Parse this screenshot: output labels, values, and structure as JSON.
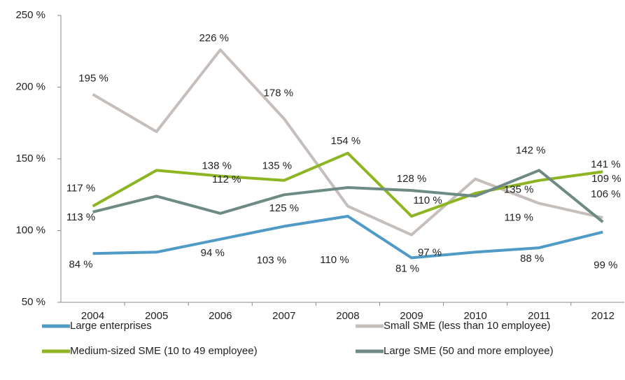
{
  "chart_data": {
    "type": "line",
    "categories": [
      "2004",
      "2005",
      "2006",
      "2007",
      "2008",
      "2009",
      "2010",
      "2011",
      "2012"
    ],
    "ylim": [
      50,
      250
    ],
    "yticks": [
      {
        "value": 50,
        "label": "50 %"
      },
      {
        "value": 100,
        "label": "100 %"
      },
      {
        "value": 150,
        "label": "150 %"
      },
      {
        "value": 200,
        "label": "200 %"
      },
      {
        "value": 250,
        "label": "250 %"
      }
    ],
    "grid": false,
    "legend": "bottom",
    "series": [
      {
        "name": "Large enterprises",
        "color": "#4f9ac6",
        "values": [
          84,
          85,
          94,
          103,
          110,
          81,
          85,
          88,
          99
        ],
        "value_labels": [
          "84 %",
          null,
          "94 %",
          "103 %",
          "110 %",
          "81 %",
          null,
          "88 %",
          "99 %"
        ]
      },
      {
        "name": "Small SME (less than 10 employee)",
        "color": "#c5bebb",
        "values": [
          195,
          169,
          226,
          178,
          117,
          97,
          136,
          119,
          109
        ],
        "value_labels": [
          "195 %",
          null,
          "226 %",
          "178 %",
          null,
          "97 %",
          null,
          "119 %",
          "109 %"
        ]
      },
      {
        "name": "Medium-sized SME (10 to 49 employee)",
        "color": "#8cb521",
        "values": [
          117,
          142,
          138,
          135,
          154,
          110,
          126,
          135,
          141
        ],
        "value_labels": [
          "117 %",
          null,
          "138 %",
          "135 %",
          "154 %",
          "110 %",
          null,
          "135 %",
          "141 %"
        ]
      },
      {
        "name": "Large SME (50 and more employee)",
        "color": "#6d8a84",
        "values": [
          113,
          124,
          112,
          125,
          130,
          128,
          124,
          142,
          106
        ],
        "value_labels": [
          "113 %",
          null,
          "112 %",
          "125 %",
          null,
          "128 %",
          null,
          "142 %",
          "106 %"
        ]
      }
    ]
  }
}
